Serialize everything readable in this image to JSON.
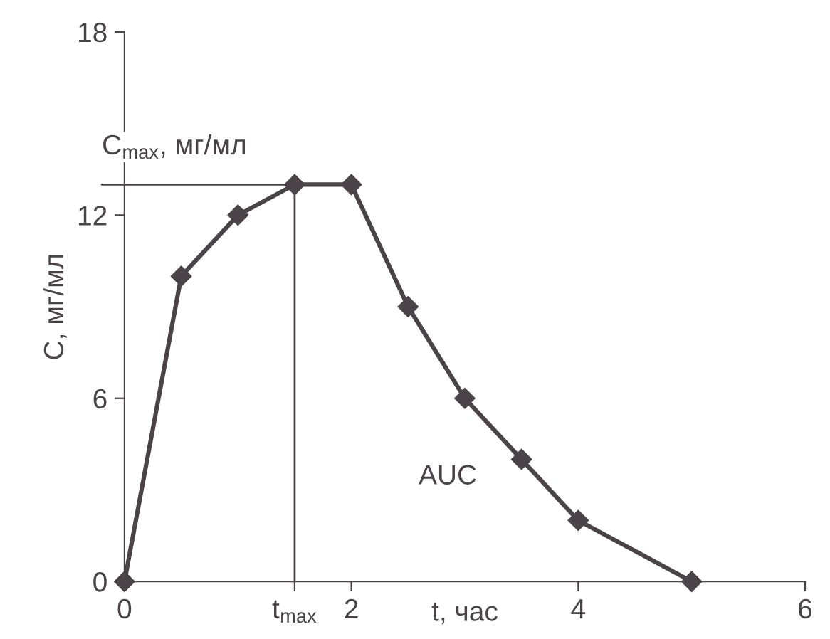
{
  "chart_data": {
    "type": "line",
    "ylabel": "C, мг/мл",
    "xlabel": "t, час",
    "x": [
      0,
      0.5,
      1,
      1.5,
      2,
      2.5,
      3,
      3.5,
      4,
      5
    ],
    "series": [
      {
        "color": "#4a4448",
        "values": [
          0,
          10,
          12,
          13,
          13,
          9,
          6,
          4,
          2,
          0
        ]
      }
    ],
    "marker": "diamond",
    "line_style": "solid",
    "grid": false,
    "legend": false,
    "xlim": [
      0,
      6
    ],
    "ylim": [
      0,
      18
    ],
    "xticks": [
      0,
      {
        "value": 1.5,
        "label": "t$_{max}$"
      },
      2,
      4,
      6
    ],
    "yticks": [
      0,
      6,
      12,
      18
    ],
    "ref_lines": [
      {
        "axis": "y",
        "value": 13,
        "label": "C$_{max}$, мг/мл",
        "color": "#4a4448"
      },
      {
        "axis": "x",
        "value": 1.5,
        "color": "#4a4448"
      }
    ],
    "annotations": [
      "AUC"
    ]
  }
}
